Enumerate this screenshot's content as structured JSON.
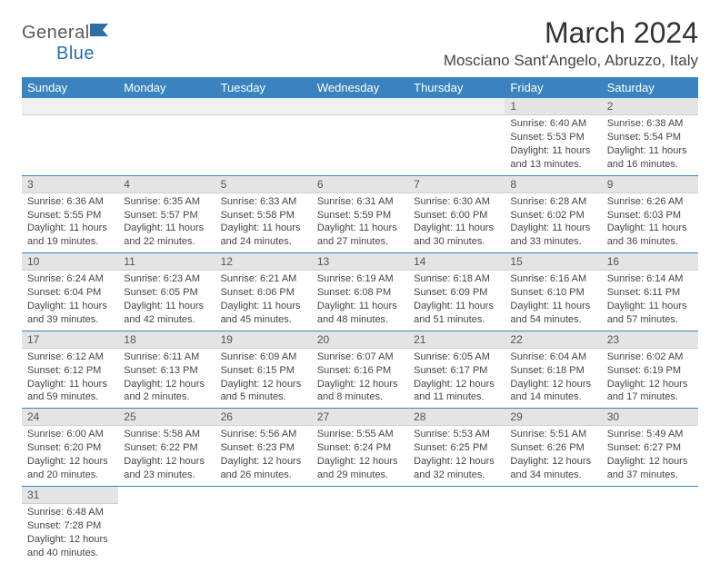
{
  "logo": {
    "word1": "General",
    "word2": "Blue"
  },
  "title": "March 2024",
  "location": "Mosciano Sant'Angelo, Abruzzo, Italy",
  "colors": {
    "header_bg": "#3A83BF",
    "header_text": "#ffffff",
    "daynum_bg": "#e4e4e4",
    "row_border": "#3A83BF",
    "text": "#444444",
    "logo_gray": "#5a5a5a",
    "logo_blue": "#2E6FA8",
    "page_bg": "#ffffff"
  },
  "fonts": {
    "title_size_pt": 24,
    "location_size_pt": 13,
    "dayheader_size_pt": 10,
    "cell_size_pt": 8,
    "family": "Arial"
  },
  "day_headers": [
    "Sunday",
    "Monday",
    "Tuesday",
    "Wednesday",
    "Thursday",
    "Friday",
    "Saturday"
  ],
  "weeks": [
    [
      {
        "day": "",
        "lines": []
      },
      {
        "day": "",
        "lines": []
      },
      {
        "day": "",
        "lines": []
      },
      {
        "day": "",
        "lines": []
      },
      {
        "day": "",
        "lines": []
      },
      {
        "day": "1",
        "lines": [
          "Sunrise: 6:40 AM",
          "Sunset: 5:53 PM",
          "Daylight: 11 hours",
          "and 13 minutes."
        ]
      },
      {
        "day": "2",
        "lines": [
          "Sunrise: 6:38 AM",
          "Sunset: 5:54 PM",
          "Daylight: 11 hours",
          "and 16 minutes."
        ]
      }
    ],
    [
      {
        "day": "3",
        "lines": [
          "Sunrise: 6:36 AM",
          "Sunset: 5:55 PM",
          "Daylight: 11 hours",
          "and 19 minutes."
        ]
      },
      {
        "day": "4",
        "lines": [
          "Sunrise: 6:35 AM",
          "Sunset: 5:57 PM",
          "Daylight: 11 hours",
          "and 22 minutes."
        ]
      },
      {
        "day": "5",
        "lines": [
          "Sunrise: 6:33 AM",
          "Sunset: 5:58 PM",
          "Daylight: 11 hours",
          "and 24 minutes."
        ]
      },
      {
        "day": "6",
        "lines": [
          "Sunrise: 6:31 AM",
          "Sunset: 5:59 PM",
          "Daylight: 11 hours",
          "and 27 minutes."
        ]
      },
      {
        "day": "7",
        "lines": [
          "Sunrise: 6:30 AM",
          "Sunset: 6:00 PM",
          "Daylight: 11 hours",
          "and 30 minutes."
        ]
      },
      {
        "day": "8",
        "lines": [
          "Sunrise: 6:28 AM",
          "Sunset: 6:02 PM",
          "Daylight: 11 hours",
          "and 33 minutes."
        ]
      },
      {
        "day": "9",
        "lines": [
          "Sunrise: 6:26 AM",
          "Sunset: 6:03 PM",
          "Daylight: 11 hours",
          "and 36 minutes."
        ]
      }
    ],
    [
      {
        "day": "10",
        "lines": [
          "Sunrise: 6:24 AM",
          "Sunset: 6:04 PM",
          "Daylight: 11 hours",
          "and 39 minutes."
        ]
      },
      {
        "day": "11",
        "lines": [
          "Sunrise: 6:23 AM",
          "Sunset: 6:05 PM",
          "Daylight: 11 hours",
          "and 42 minutes."
        ]
      },
      {
        "day": "12",
        "lines": [
          "Sunrise: 6:21 AM",
          "Sunset: 6:06 PM",
          "Daylight: 11 hours",
          "and 45 minutes."
        ]
      },
      {
        "day": "13",
        "lines": [
          "Sunrise: 6:19 AM",
          "Sunset: 6:08 PM",
          "Daylight: 11 hours",
          "and 48 minutes."
        ]
      },
      {
        "day": "14",
        "lines": [
          "Sunrise: 6:18 AM",
          "Sunset: 6:09 PM",
          "Daylight: 11 hours",
          "and 51 minutes."
        ]
      },
      {
        "day": "15",
        "lines": [
          "Sunrise: 6:16 AM",
          "Sunset: 6:10 PM",
          "Daylight: 11 hours",
          "and 54 minutes."
        ]
      },
      {
        "day": "16",
        "lines": [
          "Sunrise: 6:14 AM",
          "Sunset: 6:11 PM",
          "Daylight: 11 hours",
          "and 57 minutes."
        ]
      }
    ],
    [
      {
        "day": "17",
        "lines": [
          "Sunrise: 6:12 AM",
          "Sunset: 6:12 PM",
          "Daylight: 11 hours",
          "and 59 minutes."
        ]
      },
      {
        "day": "18",
        "lines": [
          "Sunrise: 6:11 AM",
          "Sunset: 6:13 PM",
          "Daylight: 12 hours",
          "and 2 minutes."
        ]
      },
      {
        "day": "19",
        "lines": [
          "Sunrise: 6:09 AM",
          "Sunset: 6:15 PM",
          "Daylight: 12 hours",
          "and 5 minutes."
        ]
      },
      {
        "day": "20",
        "lines": [
          "Sunrise: 6:07 AM",
          "Sunset: 6:16 PM",
          "Daylight: 12 hours",
          "and 8 minutes."
        ]
      },
      {
        "day": "21",
        "lines": [
          "Sunrise: 6:05 AM",
          "Sunset: 6:17 PM",
          "Daylight: 12 hours",
          "and 11 minutes."
        ]
      },
      {
        "day": "22",
        "lines": [
          "Sunrise: 6:04 AM",
          "Sunset: 6:18 PM",
          "Daylight: 12 hours",
          "and 14 minutes."
        ]
      },
      {
        "day": "23",
        "lines": [
          "Sunrise: 6:02 AM",
          "Sunset: 6:19 PM",
          "Daylight: 12 hours",
          "and 17 minutes."
        ]
      }
    ],
    [
      {
        "day": "24",
        "lines": [
          "Sunrise: 6:00 AM",
          "Sunset: 6:20 PM",
          "Daylight: 12 hours",
          "and 20 minutes."
        ]
      },
      {
        "day": "25",
        "lines": [
          "Sunrise: 5:58 AM",
          "Sunset: 6:22 PM",
          "Daylight: 12 hours",
          "and 23 minutes."
        ]
      },
      {
        "day": "26",
        "lines": [
          "Sunrise: 5:56 AM",
          "Sunset: 6:23 PM",
          "Daylight: 12 hours",
          "and 26 minutes."
        ]
      },
      {
        "day": "27",
        "lines": [
          "Sunrise: 5:55 AM",
          "Sunset: 6:24 PM",
          "Daylight: 12 hours",
          "and 29 minutes."
        ]
      },
      {
        "day": "28",
        "lines": [
          "Sunrise: 5:53 AM",
          "Sunset: 6:25 PM",
          "Daylight: 12 hours",
          "and 32 minutes."
        ]
      },
      {
        "day": "29",
        "lines": [
          "Sunrise: 5:51 AM",
          "Sunset: 6:26 PM",
          "Daylight: 12 hours",
          "and 34 minutes."
        ]
      },
      {
        "day": "30",
        "lines": [
          "Sunrise: 5:49 AM",
          "Sunset: 6:27 PM",
          "Daylight: 12 hours",
          "and 37 minutes."
        ]
      }
    ],
    [
      {
        "day": "31",
        "lines": [
          "Sunrise: 6:48 AM",
          "Sunset: 7:28 PM",
          "Daylight: 12 hours",
          "and 40 minutes."
        ]
      },
      {
        "day": "",
        "lines": []
      },
      {
        "day": "",
        "lines": []
      },
      {
        "day": "",
        "lines": []
      },
      {
        "day": "",
        "lines": []
      },
      {
        "day": "",
        "lines": []
      },
      {
        "day": "",
        "lines": []
      }
    ]
  ]
}
